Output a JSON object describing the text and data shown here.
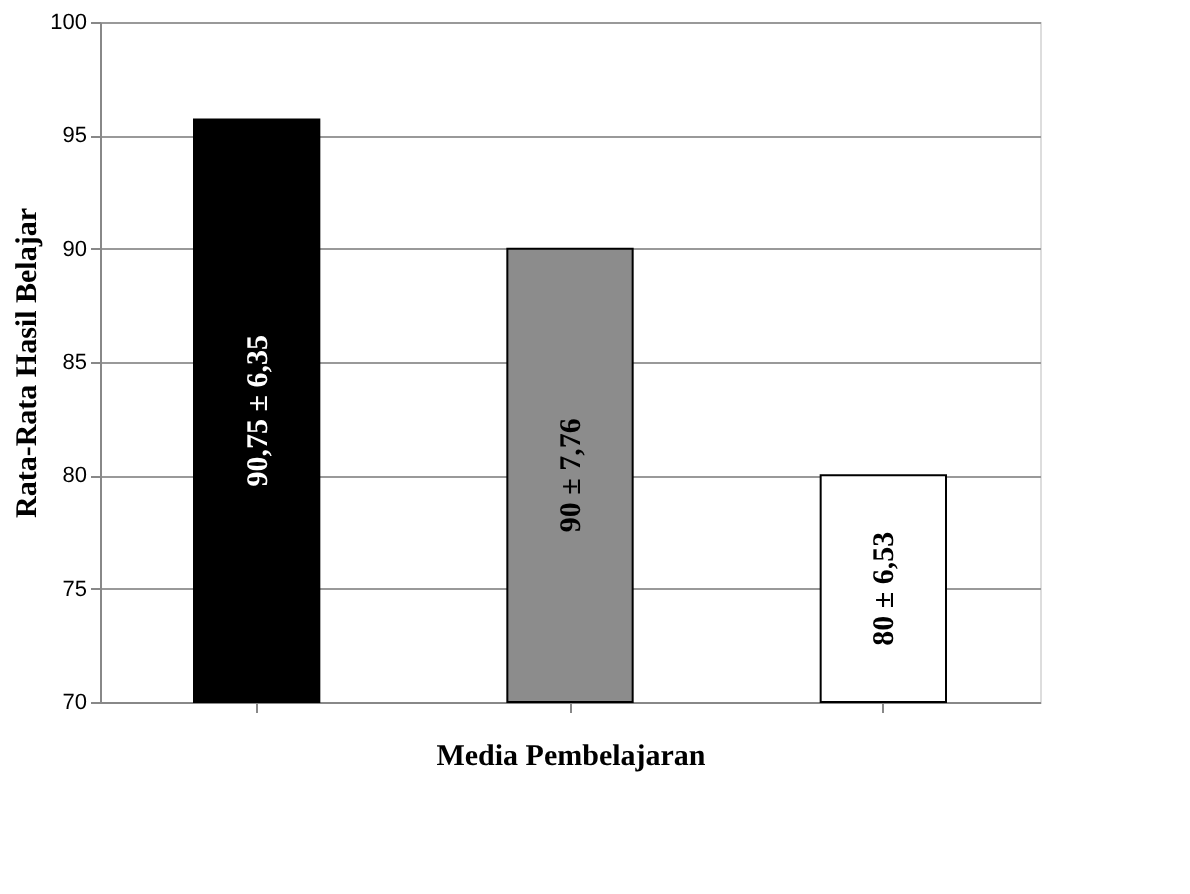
{
  "chart_data": {
    "type": "bar",
    "xlabel": "Media Pembelajaran",
    "ylabel": "Rata-Rata Hasil Belajar",
    "categories": [
      null,
      null,
      null
    ],
    "values": [
      95.7,
      90,
      80
    ],
    "colors": [
      "#000000",
      "#8c8c8c",
      "#ffffff"
    ],
    "annotations": [
      "90,75 ± 6,35",
      "90 ± 7,76",
      "80 ± 6,53"
    ],
    "ylim": [
      70,
      100
    ],
    "yticks": [
      70,
      75,
      80,
      85,
      90,
      95,
      100
    ],
    "grid": "y"
  }
}
